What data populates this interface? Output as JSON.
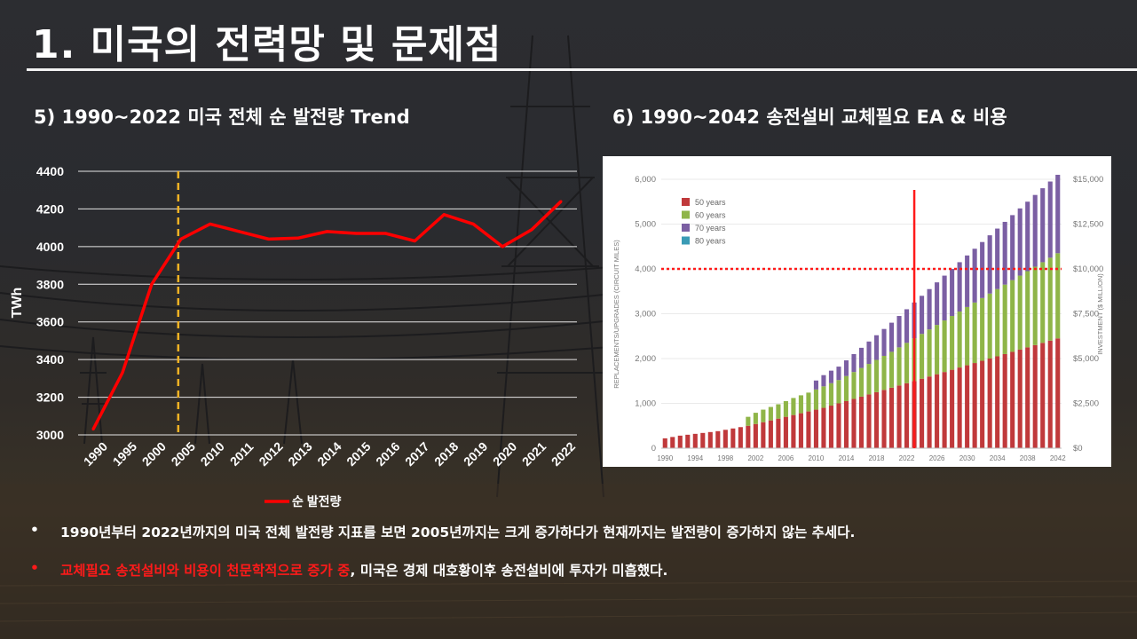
{
  "page": {
    "title": "1. 미국의 전력망 및 문제점",
    "left_subtitle": "5)  1990~2022 미국 전체 순 발전량 Trend",
    "right_subtitle": "6)  1990~2042 송전설비 교체필요 EA & 비용"
  },
  "colors": {
    "line": "#ff0000",
    "marker": "#f5b324",
    "bar_50": "#c0393b",
    "bar_60": "#8fb548",
    "bar_70": "#7b5fa3",
    "bar_80": "#3a9bb5",
    "highlight": "#ff1a1a"
  },
  "bullets": [
    {
      "dot": "•",
      "text": "1990년부터 2022년까지의 미국 전체 발전량 지표를 보면 2005년까지는 크게 증가하다가 현재까지는 발전량이 증가하지 않는 추세다."
    },
    {
      "dot": "•",
      "highlight": "교체필요 송전설비와 비용이 천문학적으로 증가 중",
      "text": ", 미국은 경제 대호황이후 송전설비에 투자가 미흡했다."
    }
  ],
  "chart_data": [
    {
      "type": "line",
      "title": "5)  1990~2022 미국 전체 순 발전량 Trend",
      "categories": [
        "1990",
        "1995",
        "2000",
        "2005",
        "2010",
        "2011",
        "2012",
        "2013",
        "2014",
        "2015",
        "2016",
        "2017",
        "2018",
        "2019",
        "2020",
        "2021",
        "2022"
      ],
      "series": [
        {
          "name": "순 발전량",
          "values": [
            3030,
            3330,
            3800,
            4040,
            4120,
            4080,
            4040,
            4045,
            4080,
            4070,
            4070,
            4030,
            4170,
            4120,
            4000,
            4090,
            4240
          ]
        }
      ],
      "ylabel": "TWh",
      "ylim": [
        3000,
        4400
      ],
      "yticks": [
        3000,
        3200,
        3400,
        3600,
        3800,
        4000,
        4200,
        4400
      ],
      "grid": true,
      "marker_line_at": "2005",
      "legend": "bottom-center"
    },
    {
      "type": "bar",
      "stacked": true,
      "title": "6)  1990~2042 송전설비 교체필요 EA & 비용",
      "categories": [
        "1990",
        "1991",
        "1992",
        "1993",
        "1994",
        "1995",
        "1996",
        "1997",
        "1998",
        "1999",
        "2000",
        "2001",
        "2002",
        "2003",
        "2004",
        "2005",
        "2006",
        "2007",
        "2008",
        "2009",
        "2010",
        "2011",
        "2012",
        "2013",
        "2014",
        "2015",
        "2016",
        "2017",
        "2018",
        "2019",
        "2020",
        "2021",
        "2022",
        "2023",
        "2024",
        "2025",
        "2026",
        "2027",
        "2028",
        "2029",
        "2030",
        "2031",
        "2032",
        "2033",
        "2034",
        "2035",
        "2036",
        "2037",
        "2038",
        "2039",
        "2040",
        "2041",
        "2042"
      ],
      "x_tick_labels": [
        "1990",
        "1994",
        "1998",
        "2002",
        "2006",
        "2010",
        "2014",
        "2018",
        "2022",
        "2026",
        "2030",
        "2034",
        "2038",
        "2042"
      ],
      "series": [
        {
          "name": "50 years",
          "values": [
            220,
            250,
            280,
            300,
            320,
            340,
            360,
            380,
            410,
            440,
            470,
            500,
            540,
            580,
            620,
            660,
            700,
            740,
            780,
            820,
            860,
            900,
            950,
            1000,
            1050,
            1100,
            1150,
            1200,
            1250,
            1300,
            1350,
            1400,
            1450,
            1500,
            1550,
            1600,
            1650,
            1700,
            1750,
            1800,
            1850,
            1900,
            1950,
            2000,
            2050,
            2100,
            2150,
            2200,
            2250,
            2300,
            2350,
            2400,
            2450
          ]
        },
        {
          "name": "60 years",
          "values": [
            0,
            0,
            0,
            0,
            0,
            0,
            0,
            0,
            0,
            0,
            0,
            200,
            250,
            280,
            300,
            320,
            350,
            380,
            400,
            420,
            450,
            480,
            500,
            520,
            560,
            600,
            640,
            680,
            720,
            760,
            800,
            850,
            900,
            950,
            1000,
            1050,
            1100,
            1150,
            1200,
            1250,
            1300,
            1350,
            1400,
            1450,
            1500,
            1550,
            1600,
            1650,
            1700,
            1750,
            1800,
            1850,
            1900
          ]
        },
        {
          "name": "70 years",
          "values": [
            0,
            0,
            0,
            0,
            0,
            0,
            0,
            0,
            0,
            0,
            0,
            0,
            0,
            0,
            0,
            0,
            0,
            0,
            0,
            0,
            200,
            250,
            280,
            300,
            350,
            400,
            450,
            500,
            550,
            600,
            650,
            700,
            750,
            800,
            850,
            900,
            950,
            1000,
            1050,
            1100,
            1150,
            1200,
            1250,
            1300,
            1350,
            1400,
            1450,
            1500,
            1550,
            1600,
            1650,
            1700,
            1750
          ]
        },
        {
          "name": "80 years",
          "values": [
            0,
            0,
            0,
            0,
            0,
            0,
            0,
            0,
            0,
            0,
            0,
            0,
            0,
            0,
            0,
            0,
            0,
            0,
            0,
            0,
            0,
            0,
            0,
            0,
            0,
            0,
            0,
            0,
            0,
            0,
            0,
            0,
            0,
            0,
            0,
            0,
            0,
            0,
            0,
            0,
            0,
            0,
            0,
            0,
            0,
            0,
            0,
            0,
            0,
            0,
            0,
            0,
            0
          ]
        }
      ],
      "ylabel": "REPLACEMENTS/UPGRADES (CIRCUIT MILES)",
      "ylim": [
        0,
        6000
      ],
      "yticks": [
        "0",
        "1,000",
        "2,000",
        "3,000",
        "4,000",
        "5,000",
        "6,000"
      ],
      "y2label": "INVESTMENT ($ MILLION)",
      "y2lim": [
        0,
        15000
      ],
      "y2ticks": [
        "$0",
        "$2,500",
        "$5,000",
        "$7,500",
        "$10,000",
        "$12,500",
        "$15,000"
      ],
      "threshold_y": 4000,
      "current_year_line": "2023",
      "legend": "top-left"
    }
  ]
}
